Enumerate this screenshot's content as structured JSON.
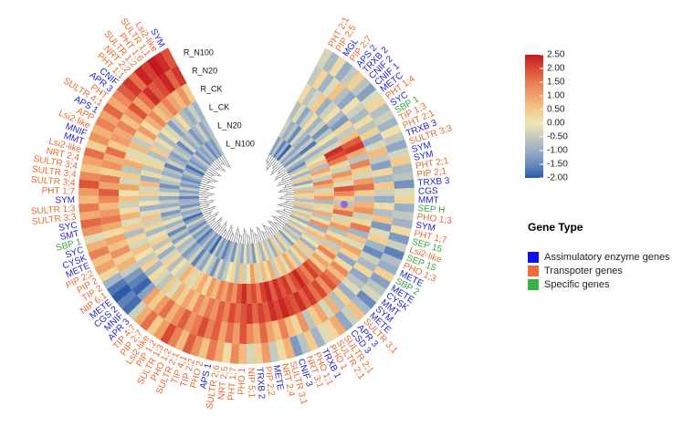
{
  "chart_data": {
    "type": "circular-heatmap",
    "categories": [
      "PHT 2;1",
      "PIP 2;5",
      "MGL",
      "PIP 2;7",
      "APS 2",
      "TRXB 2",
      "CNIF 2",
      "CNIF 1",
      "METC",
      "PHT 1;4",
      "SYC",
      "SBP 1",
      "TIP 1;3",
      "PHT 2;1",
      "TRXB 3",
      "SULTR 3;3",
      "SYM",
      "SYM",
      "PHT 2;1",
      "PIP 2;1",
      "TRXB 3",
      "CGS",
      "MMT",
      "SEP H",
      "PHO 1;3",
      "SYM",
      "PHT 1;7",
      "SEP 15",
      "Lsi2-like",
      "SEP 15",
      "PHO 1;3",
      "METE",
      "SBP 2",
      "METE",
      "CYSK",
      "MMT",
      "SYM",
      "METE",
      "SULTR 3;1",
      "APR 3",
      "CSD 3",
      "SULTR 2;1",
      "SULTR 2;1",
      "PHO 1",
      "TRXB 1",
      "PHO 1;1",
      "NRT 3;1",
      "CNIF 3",
      "SULTR 3;1",
      "NRT 2;4",
      "METE",
      "PIP 2;2",
      "TRXB 2",
      "NIP 5;1",
      "PHO 1",
      "PHT 1;7",
      "NRT 2;5",
      "SULTR 2;6",
      "APS 1",
      "PHO 2",
      "TIP 2;2",
      "TIP 4;1",
      "SULTR 2;1",
      "PHO 1;2",
      "SULTR 1;3",
      "PIP 1;2",
      "Lsi2-like",
      "PIP 2;7",
      "TIP 4;7",
      "APR 3",
      "MNIF",
      "CGS 2",
      "METE",
      "NIP 6;1",
      "TIP 2",
      "PIP 2",
      "PIP 2;2",
      "METE",
      "CYSK",
      "SYC",
      "SBP 1",
      "SMT",
      "SYC",
      "SULTR 3;3",
      "SULTR 1;3",
      "SYM",
      "PHT 1;7",
      "SULTR 3;4",
      "SULTR 3;4",
      "SULTR 3;4",
      "NRT 2;4",
      "Lsi2-like",
      "MMT",
      "MNIF",
      "Lsi2-like",
      "APP",
      "APS 1",
      "SULTR 4;1",
      "PHT",
      "APR 3",
      "CNIF",
      "PHT 1;1",
      "NRT 2;2",
      "SULTR 1;2",
      "PHT 1;6",
      "SULTR 1;1",
      "Lsi2-like",
      "SYM"
    ],
    "category_groups": [
      1,
      1,
      0,
      1,
      0,
      0,
      0,
      0,
      0,
      1,
      0,
      2,
      1,
      1,
      0,
      1,
      0,
      0,
      1,
      1,
      0,
      0,
      0,
      2,
      1,
      0,
      1,
      2,
      1,
      2,
      1,
      0,
      2,
      0,
      0,
      0,
      0,
      0,
      1,
      0,
      0,
      1,
      1,
      1,
      0,
      1,
      1,
      0,
      1,
      1,
      0,
      1,
      0,
      1,
      1,
      1,
      1,
      1,
      0,
      1,
      1,
      1,
      1,
      1,
      1,
      1,
      1,
      1,
      1,
      0,
      0,
      0,
      0,
      1,
      1,
      1,
      1,
      0,
      0,
      0,
      2,
      0,
      0,
      1,
      1,
      0,
      1,
      1,
      1,
      1,
      1,
      1,
      0,
      0,
      1,
      1,
      0,
      1,
      1,
      0,
      0,
      1,
      1,
      1,
      1,
      1,
      1,
      0
    ],
    "series": [
      {
        "name": "R_N100",
        "values": [
          -0.3,
          -0.8,
          0.2,
          -1.0,
          -0.5,
          0.4,
          -0.6,
          -1.2,
          -0.2,
          0.3,
          -0.7,
          -0.4,
          -0.9,
          0.1,
          -0.5,
          -1.1,
          -0.3,
          0.5,
          -0.8,
          -0.6,
          -1.4,
          -0.2,
          0.3,
          -1.0,
          -0.5,
          -0.9,
          0.2,
          -1.3,
          -0.4,
          -1.6,
          -0.7,
          -1.0,
          0.4,
          -1.2,
          -0.6,
          -0.3,
          -1.5,
          -0.8,
          0.6,
          -0.4,
          -1.1,
          0.9,
          0.3,
          -0.2,
          -0.9,
          0.5,
          -0.6,
          -1.3,
          0.8,
          0.2,
          -0.5,
          1.1,
          0.4,
          -0.3,
          0.7,
          1.3,
          0.2,
          0.9,
          1.5,
          0.6,
          1.2,
          1.8,
          0.7,
          1.4,
          2.0,
          1.1,
          0.5,
          1.6,
          0.9,
          -0.4,
          -1.8,
          -1.6,
          -2.0,
          -1.7,
          -0.9,
          0.3,
          1.0,
          0.6,
          1.4,
          0.8,
          -0.2,
          1.2,
          1.7,
          0.9,
          1.5,
          0.7,
          1.1,
          1.9,
          1.3,
          0.6,
          1.0,
          1.6,
          0.4,
          1.2,
          0.8,
          1.4,
          1.0,
          1.7,
          0.9,
          1.3,
          1.8,
          2.2,
          1.6,
          2.4,
          2.1,
          2.5,
          2.3,
          1.9
        ]
      },
      {
        "name": "R_N20",
        "values": [
          -0.5,
          0.3,
          -0.9,
          -0.2,
          0.6,
          -0.7,
          -1.1,
          0.1,
          -0.4,
          -0.8,
          0.2,
          -0.6,
          0.4,
          -1.0,
          -0.3,
          0.7,
          -0.5,
          -1.2,
          0.3,
          -0.8,
          0.5,
          -0.4,
          -1.0,
          0.2,
          -0.7,
          0.6,
          -1.3,
          -0.2,
          0.4,
          -0.9,
          -1.5,
          -0.4,
          -0.8,
          0.3,
          -1.1,
          -0.6,
          -0.2,
          -1.0,
          0.4,
          -0.7,
          0.8,
          -0.3,
          1.0,
          0.5,
          -0.6,
          1.2,
          0.3,
          0.7,
          1.4,
          0.6,
          1.0,
          1.7,
          0.9,
          1.3,
          1.9,
          1.1,
          1.6,
          1.0,
          1.8,
          1.4,
          2.0,
          1.5,
          1.2,
          1.8,
          1.3,
          0.8,
          1.6,
          1.1,
          0.5,
          1.0,
          -1.2,
          -1.9,
          -1.6,
          -1.3,
          -0.5,
          0.8,
          0.4,
          1.2,
          0.6,
          1.0,
          0.2,
          0.9,
          1.5,
          1.1,
          0.7,
          1.3,
          1.8,
          1.0,
          1.5,
          0.4,
          1.2,
          0.8,
          1.6,
          0.5,
          1.1,
          0.9,
          1.4,
          0.6,
          1.2,
          1.9,
          1.0,
          1.6,
          2.3,
          1.8,
          2.0,
          2.4,
          1.7,
          2.2
        ]
      },
      {
        "name": "R_CK",
        "values": [
          0.2,
          -0.6,
          -0.3,
          0.5,
          -1.0,
          -0.4,
          0.1,
          -0.8,
          -1.3,
          0.3,
          -0.5,
          0.6,
          1.8,
          2.2,
          0.9,
          -0.6,
          1.4,
          0.5,
          -0.3,
          1.1,
          1.6,
          0.4,
          -0.7,
          0.8,
          1.2,
          -0.4,
          0.3,
          1.5,
          -0.9,
          0.6,
          -0.2,
          1.0,
          0.4,
          -1.1,
          0.2,
          1.3,
          0.7,
          1.5,
          1.9,
          1.2,
          2.0,
          1.6,
          2.2,
          1.8,
          2.3,
          1.9,
          2.1,
          2.4,
          2.0,
          2.3,
          1.8,
          2.1,
          1.7,
          2.2,
          1.9,
          1.6,
          2.0,
          1.4,
          1.8,
          1.2,
          1.5,
          0.9,
          1.3,
          0.6,
          1.0,
          0.4,
          0.8,
          -0.2,
          0.5,
          -0.6,
          -0.3,
          0.2,
          -0.8,
          0.4,
          -0.5,
          0.1,
          0.6,
          -0.3,
          0.3,
          -0.7,
          0.5,
          -0.2,
          0.8,
          0.2,
          -0.4,
          0.6,
          0.1,
          1.0,
          -0.3,
          0.5,
          -0.6,
          0.9,
          0.3,
          -0.2,
          0.7,
          -0.5,
          0.4,
          1.1,
          0.2,
          0.8,
          1.3,
          0.6,
          0.9,
          1.4,
          1.0,
          0.7,
          1.2,
          0.5
        ]
      },
      {
        "name": "L_CK",
        "values": [
          -0.7,
          -0.2,
          -1.1,
          -0.5,
          0.2,
          -0.9,
          -0.4,
          -1.4,
          -0.6,
          0.1,
          -0.8,
          -0.3,
          2.3,
          2.0,
          1.5,
          0.3,
          -0.4,
          1.2,
          0.6,
          -0.2,
          1.9,
          1.3,
          0.5,
          -0.6,
          0.8,
          1.6,
          -0.3,
          0.4,
          1.1,
          -0.7,
          0.2,
          0.9,
          -0.5,
          0.6,
          1.4,
          0.3,
          1.0,
          0.5,
          1.7,
          2.1,
          1.4,
          1.8,
          2.4,
          2.0,
          1.6,
          2.2,
          1.9,
          2.3,
          1.8,
          2.4,
          2.1,
          1.5,
          2.0,
          1.7,
          2.3,
          1.9,
          1.2,
          1.6,
          1.0,
          1.4,
          0.7,
          1.1,
          0.3,
          0.9,
          0.5,
          -0.2,
          0.4,
          0.8,
          -0.4,
          0.1,
          -0.7,
          0.3,
          -0.3,
          -1.0,
          0.2,
          -0.6,
          0.4,
          -0.1,
          -0.8,
          0.3,
          -0.4,
          0.6,
          -0.2,
          -0.9,
          0.1,
          -0.5,
          0.4,
          -0.3,
          0.7,
          -1.0,
          0.2,
          -0.6,
          0.3,
          -0.2,
          -0.7,
          0.5,
          -0.4,
          0.2,
          -0.8,
          0.1,
          -0.3,
          -1.2,
          -0.5,
          0.2,
          -0.7,
          -1.0,
          -0.4,
          -0.9
        ]
      },
      {
        "name": "L_N20",
        "values": [
          -0.4,
          -1.0,
          -0.6,
          -1.5,
          -0.3,
          -0.8,
          -1.2,
          -0.5,
          -1.7,
          -0.2,
          -0.9,
          -0.4,
          -0.1,
          0.6,
          -0.7,
          1.0,
          0.3,
          -0.5,
          1.4,
          0.8,
          -0.3,
          0.5,
          1.1,
          -0.8,
          0.4,
          -0.2,
          0.9,
          -0.6,
          0.2,
          1.2,
          -1.0,
          0.3,
          0.7,
          -0.4,
          0.1,
          -0.9,
          0.5,
          -0.3,
          0.8,
          0.2,
          -0.6,
          0.4,
          1.0,
          -0.2,
          0.6,
          0.3,
          -0.5,
          0.9,
          0.2,
          0.7,
          -0.3,
          0.5,
          1.1,
          0.1,
          -0.4,
          0.6,
          -0.7,
          0.3,
          0.0,
          -0.5,
          -1.0,
          -0.3,
          -1.4,
          -0.6,
          -0.2,
          -1.1,
          -0.7,
          -1.6,
          -0.4,
          -0.9,
          -1.3,
          -0.5,
          -0.8,
          -0.2,
          -1.2,
          -0.6,
          -1.5,
          -0.4,
          -0.9,
          -0.1,
          -0.7,
          -1.3,
          -0.3,
          -1.0,
          -0.5,
          -1.1,
          -0.2,
          -0.8,
          -1.4,
          -0.6,
          -0.3,
          -1.0,
          -0.7,
          -1.6,
          -0.4,
          -0.9,
          -1.2,
          -0.5,
          -0.8,
          -1.5,
          -0.3,
          -1.0,
          -0.6,
          -1.3,
          -0.9,
          -0.4,
          -1.1,
          -0.7
        ]
      },
      {
        "name": "L_N100",
        "values": [
          -1.2,
          -0.6,
          -1.6,
          -0.9,
          -1.9,
          -0.4,
          -1.1,
          -0.7,
          -1.4,
          -0.3,
          -1.0,
          -1.5,
          -0.6,
          0.2,
          -0.9,
          -0.3,
          0.5,
          -1.1,
          0.1,
          -0.5,
          0.8,
          -0.2,
          0.4,
          -0.7,
          -0.3,
          0.6,
          -0.8,
          0.2,
          -0.5,
          0.4,
          -1.0,
          0.0,
          -0.6,
          0.3,
          -0.9,
          -0.4,
          -0.7,
          0.1,
          -1.2,
          -0.4,
          0.3,
          -0.8,
          -0.2,
          0.5,
          -1.0,
          -0.3,
          -0.6,
          0.2,
          -0.9,
          -0.4,
          0.1,
          -1.3,
          -0.5,
          -0.8,
          -0.1,
          -1.1,
          -0.6,
          -0.3,
          -1.4,
          -0.7,
          -1.1,
          -1.6,
          -0.8,
          -1.3,
          -0.5,
          -1.9,
          -1.0,
          -1.4,
          -0.7,
          -1.2,
          -1.7,
          -0.9,
          -1.3,
          -0.6,
          -1.5,
          -1.0,
          -0.4,
          -1.2,
          -1.8,
          -0.8,
          -1.1,
          -0.5,
          -1.4,
          -0.9,
          -1.0,
          -1.6,
          -0.7,
          -1.2,
          -0.5,
          -1.3,
          -0.9,
          -1.5,
          -1.1,
          -0.6,
          -1.2,
          -1.8,
          -0.8,
          -1.3,
          -1.0,
          -0.5,
          -1.4,
          -0.9,
          -1.2,
          -0.7,
          -1.5,
          -1.0,
          -1.3,
          -0.6
        ]
      }
    ],
    "colors": [
      "#2c5aa8",
      "#6a8bbd",
      "#98aec8",
      "#c3c9bd",
      "#efe6b3",
      "#f3c98c",
      "#f0a36a",
      "#e97a50",
      "#d94a35",
      "#c41a1f"
    ],
    "clim": [
      -2,
      2.5
    ],
    "cticks": [
      {
        "value": 2.5,
        "label": "2.50"
      },
      {
        "value": 2,
        "label": "2.00"
      },
      {
        "value": 1.5,
        "label": "1.50"
      },
      {
        "value": 1,
        "label": "1.00"
      },
      {
        "value": 0.5,
        "label": "0.50"
      },
      {
        "value": 0,
        "label": "0.00"
      },
      {
        "value": -0.5,
        "label": "-0.50"
      },
      {
        "value": -1,
        "label": "-1.00"
      },
      {
        "value": -1.5,
        "label": "-1.50"
      },
      {
        "value": -2,
        "label": "-2.00"
      }
    ],
    "legend": {
      "title": "Gene Type",
      "entries": [
        {
          "name": "Assimulatory enzyme genes",
          "color": "#1010e8",
          "text_color": "#2323c8"
        },
        {
          "name": "Transpoter genes",
          "color": "#ee6a3c",
          "text_color": "#e8692f"
        },
        {
          "name": "Specific genes",
          "color": "#3cb043",
          "text_color": "#35a83a"
        }
      ]
    }
  }
}
